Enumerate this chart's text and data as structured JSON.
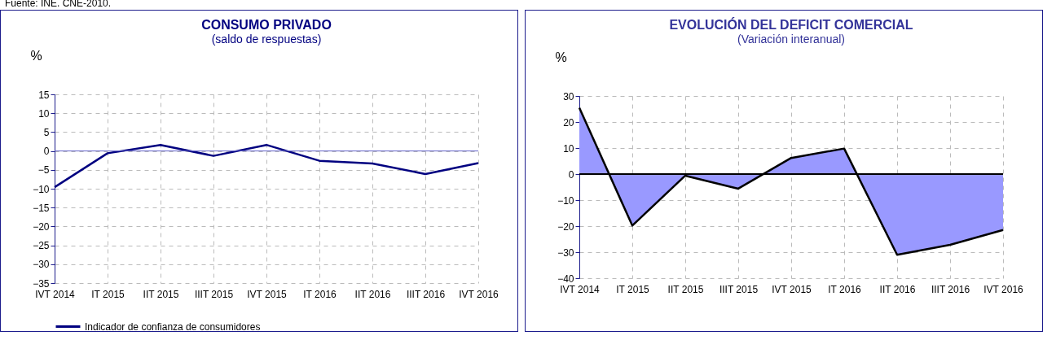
{
  "chart_data": [
    {
      "type": "line",
      "title": "CONSUMO PRIVADO",
      "subtitle": "(saldo de respuestas)",
      "ylabel": "%",
      "annotations": [
        "Fuente: INE. CNE-2010."
      ],
      "categories": [
        "IVT 2014",
        "IT 2015",
        "IIT 2015",
        "IIIT 2015",
        "IVT 2015",
        "IT 2016",
        "IIT 2016",
        "IIIT 2016",
        "IVT 2016"
      ],
      "series": [
        {
          "name": "Indicador de confianza de consumidores",
          "color": "#000080",
          "values": [
            -9.6,
            -0.6,
            1.6,
            -1.3,
            1.6,
            -2.6,
            -3.3,
            -6.1,
            -3.2
          ]
        }
      ],
      "ylim": [
        -35,
        15
      ],
      "yticks": [
        -35,
        -30,
        -25,
        -20,
        -15,
        -10,
        -5,
        0,
        5,
        10,
        15
      ],
      "ref_lines": [
        {
          "axis": "y",
          "value": 0,
          "color": "#6666cc"
        }
      ],
      "grid": true,
      "legend": "bottom"
    },
    {
      "type": "area",
      "title": "EVOLUCIÓN DEL DEFICIT COMERCIAL",
      "subtitle": "(Variación interanual)",
      "ylabel": "%",
      "categories": [
        "IVT 2014",
        "IT 2015",
        "IIT 2015",
        "IIIT 2015",
        "IVT 2015",
        "IT 2016",
        "IIT 2016",
        "IIIT 2016",
        "IVT 2016"
      ],
      "series": [
        {
          "color": "#9999ff",
          "values": [
            25.5,
            -19.8,
            -0.6,
            -5.6,
            6.2,
            9.8,
            -31,
            -27.2,
            -21.5
          ]
        }
      ],
      "ylim": [
        -40,
        30
      ],
      "yticks": [
        -40,
        -30,
        -20,
        -10,
        0,
        10,
        20,
        30
      ],
      "ref_lines": [
        {
          "axis": "y",
          "value": 0,
          "color": "#000000"
        }
      ],
      "grid": true
    }
  ]
}
